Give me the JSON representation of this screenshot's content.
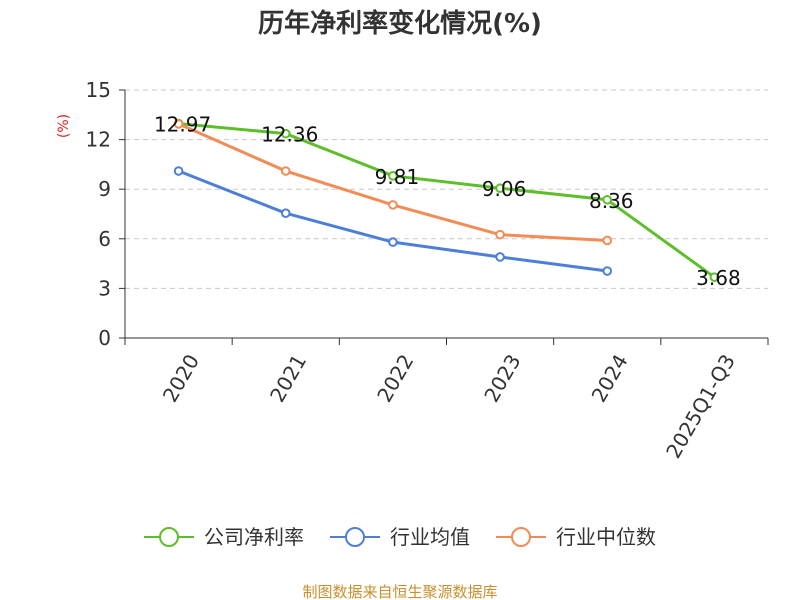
{
  "chart_data": {
    "type": "line",
    "title": "历年净利率变化情况(%)",
    "ylabel": "(%)",
    "xlabel": "",
    "categories": [
      "2020",
      "2021",
      "2022",
      "2023",
      "2024",
      "2025Q1-Q3"
    ],
    "ylim": [
      0,
      15
    ],
    "yticks": [
      0,
      3,
      6,
      9,
      12,
      15
    ],
    "grid": true,
    "legend_position": "bottom",
    "series": [
      {
        "name": "公司净利率",
        "color": "#5cbf2a",
        "values": [
          12.97,
          12.36,
          9.81,
          9.06,
          8.36,
          3.68
        ],
        "labels": [
          "12.97",
          "12.36",
          "9.81",
          "9.06",
          "8.36",
          "3.68"
        ]
      },
      {
        "name": "行业均值",
        "color": "#4e7fd8",
        "values": [
          10.1,
          7.55,
          5.8,
          4.9,
          4.05,
          null
        ]
      },
      {
        "name": "行业中位数",
        "color": "#f28c55",
        "values": [
          12.95,
          10.1,
          8.05,
          6.25,
          5.9,
          null
        ]
      }
    ]
  },
  "source_note": "制图数据来自恒生聚源数据库"
}
